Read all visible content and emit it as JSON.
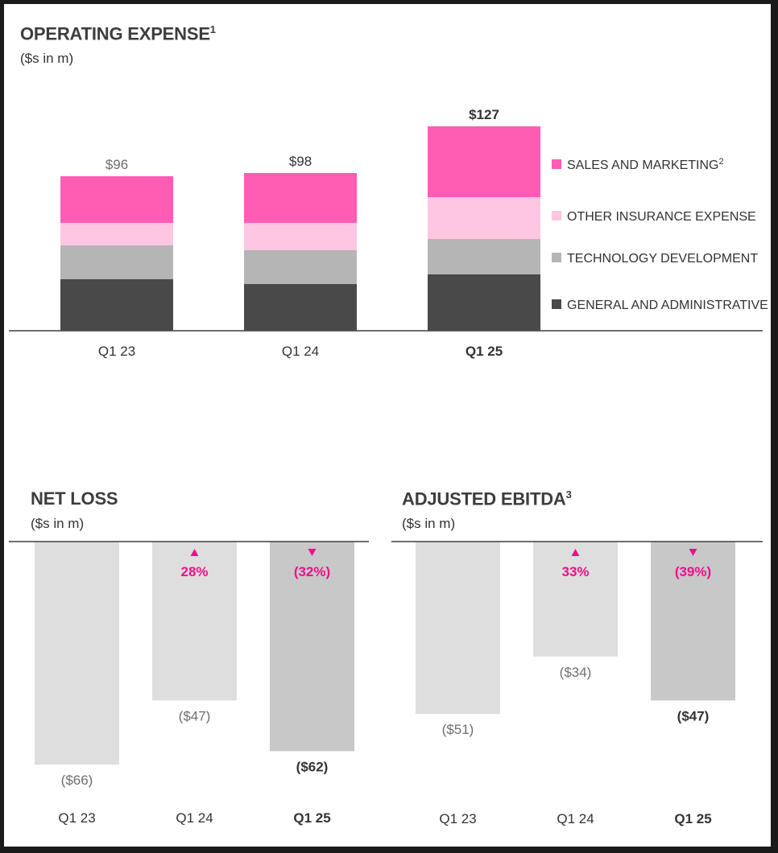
{
  "colors": {
    "sales_marketing": "#ff5cb4",
    "other_insurance": "#ffc6e2",
    "technology": "#b5b5b5",
    "general_admin": "#494949",
    "baseline": "#3d3d3d",
    "bar_light": "#dedede",
    "bar_current": "#c8c8c8",
    "accent": "#ef0f8c",
    "label_gray": "#6e6e6e",
    "label_dark": "#333333"
  },
  "chart_data": [
    {
      "id": "operating-expense",
      "type": "bar",
      "stacked": true,
      "title": "OPERATING EXPENSE",
      "title_footnote": "1",
      "subtitle": "($s in m)",
      "categories": [
        "Q1 23",
        "Q1 24",
        "Q1 25"
      ],
      "highlight_index": 2,
      "totals": [
        96,
        98,
        127
      ],
      "total_labels": [
        "$96",
        "$98",
        "$127"
      ],
      "series": [
        {
          "name": "GENERAL AND ADMINISTRATIVE",
          "color": "#494949",
          "values": [
            32,
            29,
            35
          ]
        },
        {
          "name": "TECHNOLOGY DEVELOPMENT",
          "color": "#b5b5b5",
          "values": [
            21,
            21,
            22
          ]
        },
        {
          "name": "OTHER INSURANCE EXPENSE",
          "color": "#ffc6e2",
          "values": [
            14,
            17,
            26
          ]
        },
        {
          "name": "SALES AND MARKETING",
          "footnote": "2",
          "color": "#ff5cb4",
          "values": [
            29,
            31,
            44
          ]
        }
      ],
      "legend_order": [
        "SALES AND MARKETING",
        "OTHER INSURANCE EXPENSE",
        "TECHNOLOGY DEVELOPMENT",
        "GENERAL AND ADMINISTRATIVE"
      ],
      "legend_position": "right",
      "ylim": [
        0,
        140
      ],
      "grid": false
    },
    {
      "id": "net-loss",
      "type": "bar",
      "title": "NET LOSS",
      "subtitle": "($s in m)",
      "categories": [
        "Q1 23",
        "Q1 24",
        "Q1 25"
      ],
      "highlight_index": 2,
      "values": [
        -66,
        -47,
        -62
      ],
      "value_labels": [
        "($66)",
        "($47)",
        "($62)"
      ],
      "changes": [
        {
          "index": 1,
          "direction": "up",
          "label": "28%"
        },
        {
          "index": 2,
          "direction": "down",
          "label": "(32%)"
        }
      ],
      "ylim": [
        -70,
        0
      ],
      "grid": false
    },
    {
      "id": "adjusted-ebitda",
      "type": "bar",
      "title": "ADJUSTED EBITDA",
      "title_footnote": "3",
      "subtitle": "($s in m)",
      "categories": [
        "Q1 23",
        "Q1 24",
        "Q1 25"
      ],
      "highlight_index": 2,
      "values": [
        -51,
        -34,
        -47
      ],
      "value_labels": [
        "($51)",
        "($34)",
        "($47)"
      ],
      "changes": [
        {
          "index": 1,
          "direction": "up",
          "label": "33%"
        },
        {
          "index": 2,
          "direction": "down",
          "label": "(39%)"
        }
      ],
      "ylim": [
        -70,
        0
      ],
      "grid": false
    }
  ]
}
